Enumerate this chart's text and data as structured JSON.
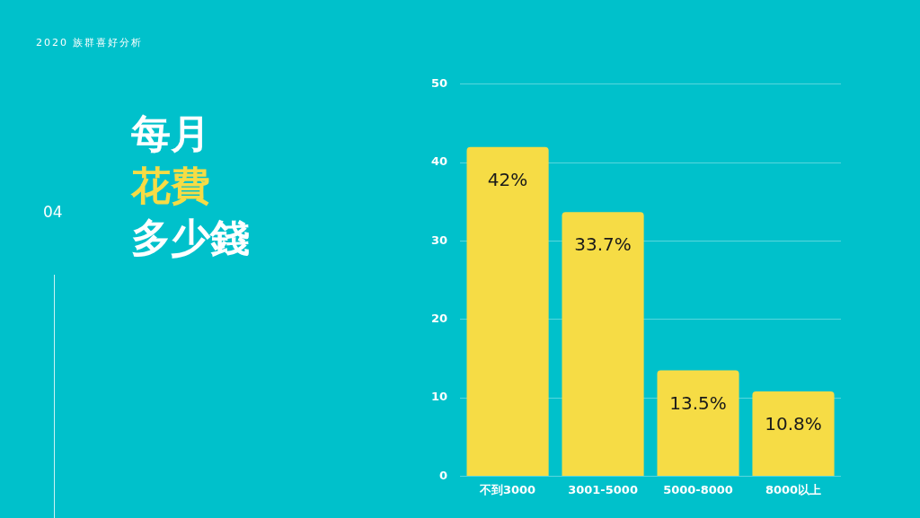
{
  "chart_data": {
    "type": "bar",
    "title": "每月花費多少錢",
    "subtitle": "2020 族群喜好分析",
    "annotations": [
      "04"
    ],
    "categories": [
      "不到3000",
      "3001-5000",
      "5000-8000",
      "8000以上"
    ],
    "values": [
      42,
      33.7,
      13.5,
      10.8
    ],
    "value_labels": [
      "42%",
      "33.7%",
      "13.5%",
      "10.8%"
    ],
    "color": "#f6dc45",
    "ylim": [
      0,
      50
    ],
    "yticks": [
      0,
      10,
      20,
      30,
      40,
      50
    ],
    "grid": "y",
    "legend": false
  }
}
